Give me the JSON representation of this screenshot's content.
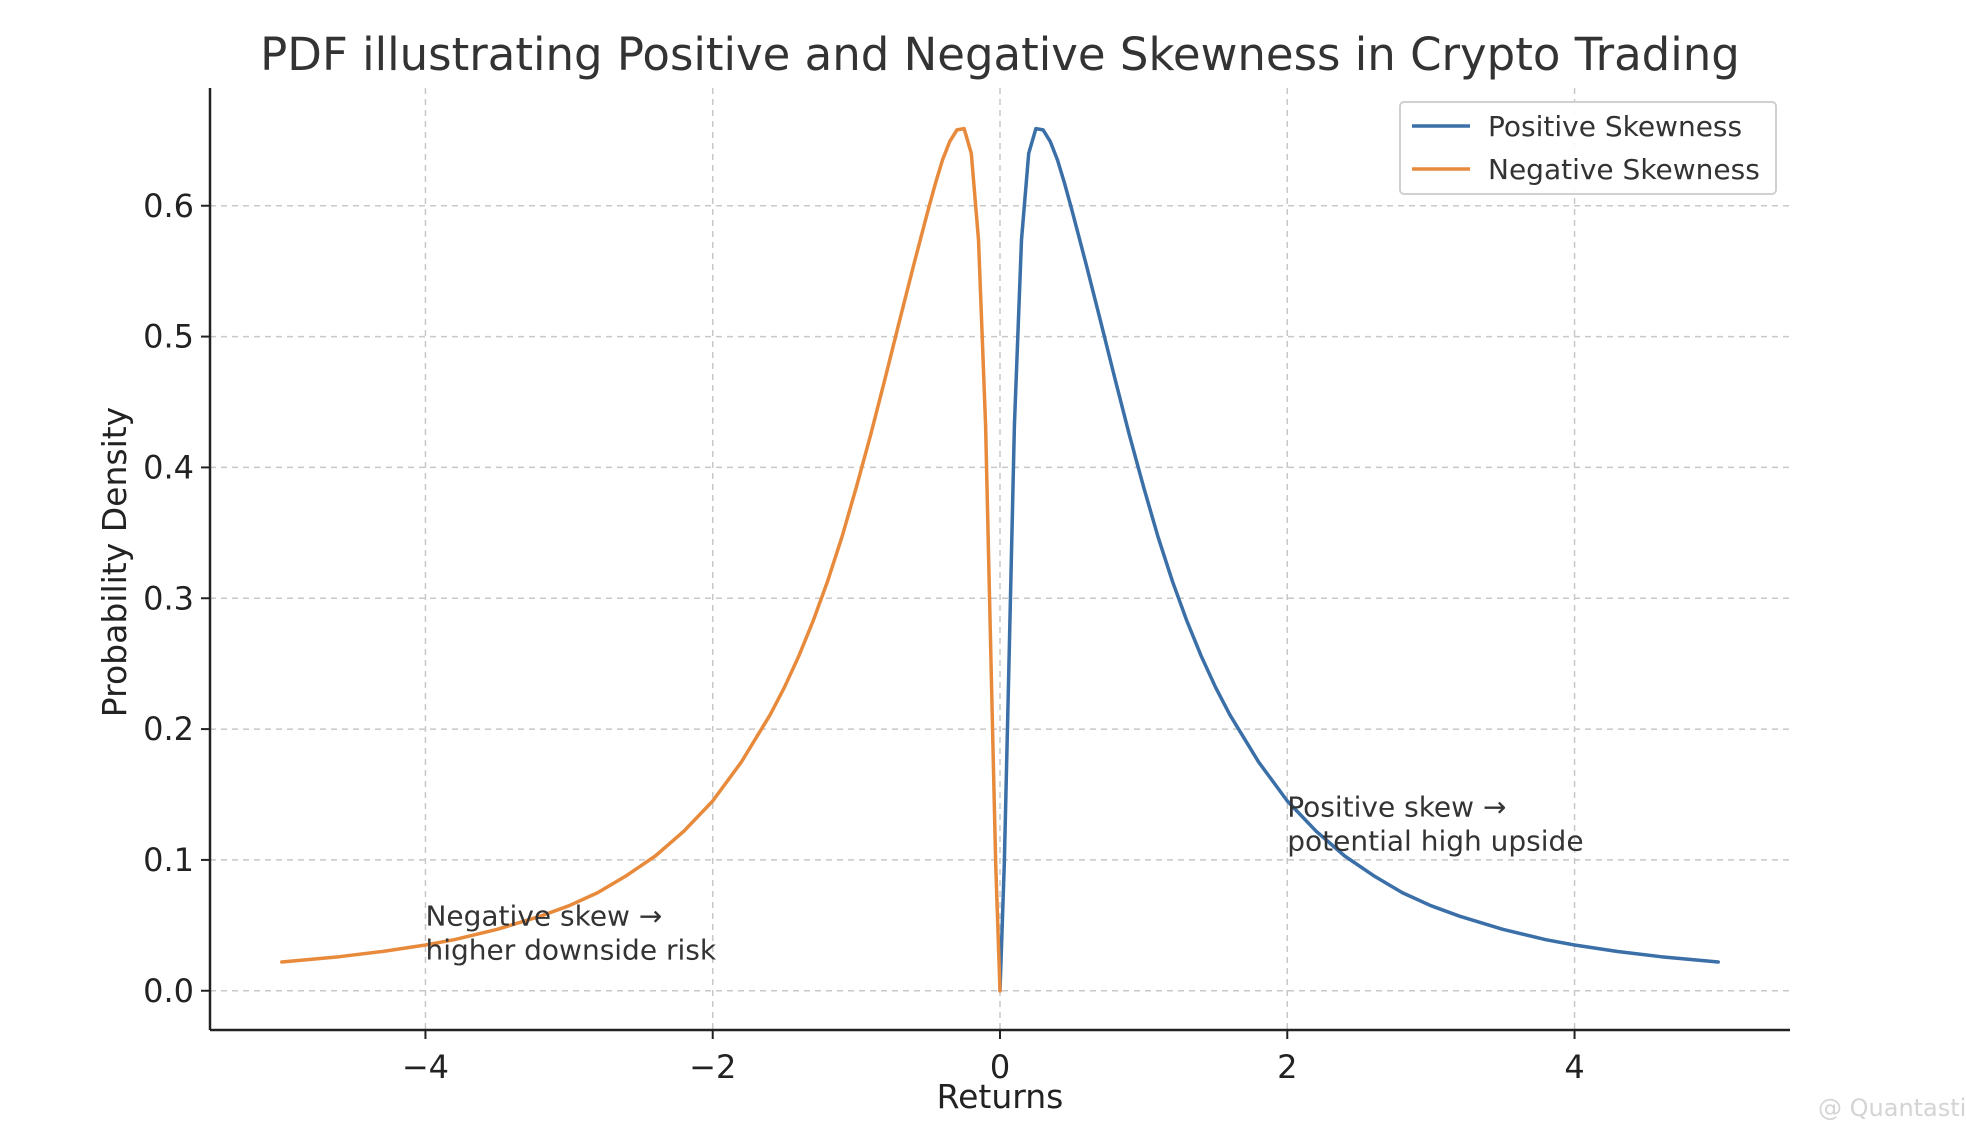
{
  "chart_data": {
    "type": "line",
    "title": "PDF illustrating Positive and Negative Skewness in Crypto Trading",
    "xlabel": "Returns",
    "ylabel": "Probability Density",
    "xlim": [
      -5.5,
      5.5
    ],
    "ylim": [
      -0.03,
      0.69
    ],
    "x_ticks": [
      -4,
      -2,
      0,
      2,
      4
    ],
    "x_tick_labels": [
      "−4",
      "−2",
      "0",
      "2",
      "4"
    ],
    "y_ticks": [
      0.0,
      0.1,
      0.2,
      0.3,
      0.4,
      0.5,
      0.6
    ],
    "y_tick_labels": [
      "0.0",
      "0.1",
      "0.2",
      "0.3",
      "0.4",
      "0.5",
      "0.6"
    ],
    "grid": true,
    "legend_position": "top-right",
    "series": [
      {
        "name": "Positive Skewness",
        "color": "#3b6fa8",
        "x": [
          0.0,
          0.03,
          0.06,
          0.1,
          0.15,
          0.2,
          0.25,
          0.3,
          0.35,
          0.4,
          0.45,
          0.5,
          0.55,
          0.6,
          0.7,
          0.8,
          0.9,
          1.0,
          1.1,
          1.2,
          1.3,
          1.4,
          1.5,
          1.6,
          1.8,
          2.0,
          2.2,
          2.4,
          2.6,
          2.8,
          3.0,
          3.2,
          3.5,
          3.8,
          4.0,
          4.3,
          4.6,
          5.0
        ],
        "y": [
          0.0,
          0.097,
          0.238,
          0.432,
          0.574,
          0.64,
          0.659,
          0.658,
          0.649,
          0.635,
          0.617,
          0.597,
          0.576,
          0.555,
          0.512,
          0.468,
          0.425,
          0.385,
          0.347,
          0.313,
          0.283,
          0.256,
          0.232,
          0.211,
          0.175,
          0.145,
          0.122,
          0.103,
          0.088,
          0.075,
          0.065,
          0.057,
          0.047,
          0.039,
          0.035,
          0.03,
          0.026,
          0.022
        ]
      },
      {
        "name": "Negative Skewness",
        "color": "#e88a3c",
        "x": [
          -5.0,
          -4.6,
          -4.3,
          -4.0,
          -3.8,
          -3.5,
          -3.2,
          -3.0,
          -2.8,
          -2.6,
          -2.4,
          -2.2,
          -2.0,
          -1.8,
          -1.6,
          -1.5,
          -1.4,
          -1.3,
          -1.2,
          -1.1,
          -1.0,
          -0.9,
          -0.8,
          -0.7,
          -0.6,
          -0.55,
          -0.5,
          -0.45,
          -0.4,
          -0.35,
          -0.3,
          -0.25,
          -0.2,
          -0.15,
          -0.1,
          -0.06,
          -0.03,
          0.0
        ],
        "y": [
          0.022,
          0.026,
          0.03,
          0.035,
          0.039,
          0.047,
          0.057,
          0.065,
          0.075,
          0.088,
          0.103,
          0.122,
          0.145,
          0.175,
          0.211,
          0.232,
          0.256,
          0.283,
          0.313,
          0.347,
          0.385,
          0.425,
          0.468,
          0.512,
          0.555,
          0.576,
          0.597,
          0.617,
          0.635,
          0.649,
          0.658,
          0.659,
          0.64,
          0.574,
          0.432,
          0.238,
          0.097,
          0.0
        ]
      }
    ],
    "annotations": [
      {
        "lines": [
          "Negative skew →",
          "higher downside risk"
        ],
        "x": -4.0,
        "y": 0.05
      },
      {
        "lines": [
          "Positive skew →",
          "potential high upside"
        ],
        "x": 2.0,
        "y": 0.133
      }
    ]
  },
  "watermark": "@ Quantastic"
}
